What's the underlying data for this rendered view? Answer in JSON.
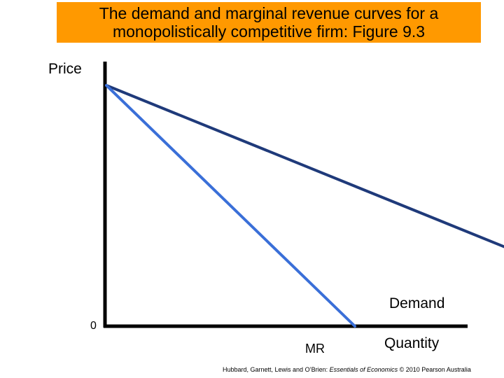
{
  "header": {
    "title_line1": "The demand and marginal revenue curves for a",
    "title_line2": "monopolistically competitive firm: Figure 9.3",
    "background_color": "#ff9900"
  },
  "chart_data": {
    "type": "line",
    "title": "The demand and marginal revenue curves for a monopolistically competitive firm: Figure 9.3",
    "xlabel": "Quantity",
    "ylabel": "Price",
    "origin_label": "0",
    "xlim": [
      0,
      1
    ],
    "ylim": [
      0,
      1
    ],
    "grid": false,
    "series": [
      {
        "name": "Demand",
        "color": "#1f3a7a",
        "points": [
          [
            0,
            0.86
          ],
          [
            1,
            0.14
          ]
        ]
      },
      {
        "name": "MR",
        "color": "#3a6fd8",
        "points": [
          [
            0,
            0.86
          ],
          [
            0.5,
            0.0
          ]
        ]
      }
    ]
  },
  "footer": {
    "credit_prefix": "Hubbard, Garnett, Lewis and O’Brien: ",
    "credit_book": "Essentials of Economics",
    "credit_suffix": " © 2010 Pearson Australia"
  }
}
